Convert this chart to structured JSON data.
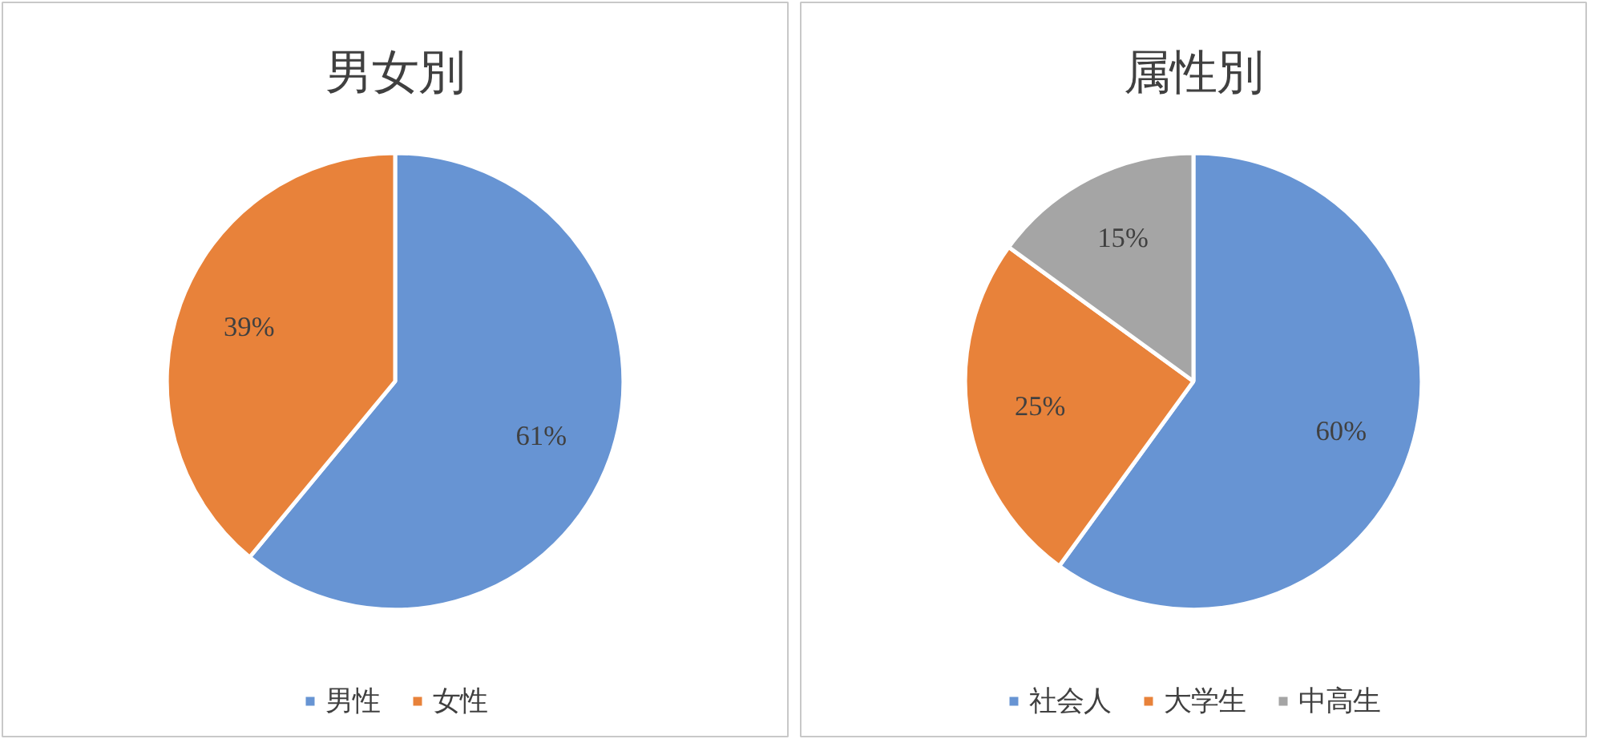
{
  "chart_data": [
    {
      "type": "pie",
      "title": "男女別",
      "categories": [
        "男性",
        "女性"
      ],
      "values": [
        61,
        39
      ],
      "colors": [
        "#6794d3",
        "#e8823a"
      ],
      "value_labels": [
        "61%",
        "39%"
      ],
      "legend": "bottom"
    },
    {
      "type": "pie",
      "title": "属性別",
      "categories": [
        "社会人",
        "大学生",
        "中高生"
      ],
      "values": [
        60,
        25,
        15
      ],
      "colors": [
        "#6794d3",
        "#e8823a",
        "#a5a5a5"
      ],
      "value_labels": [
        "60%",
        "25%",
        "15%"
      ],
      "legend": "bottom"
    }
  ]
}
